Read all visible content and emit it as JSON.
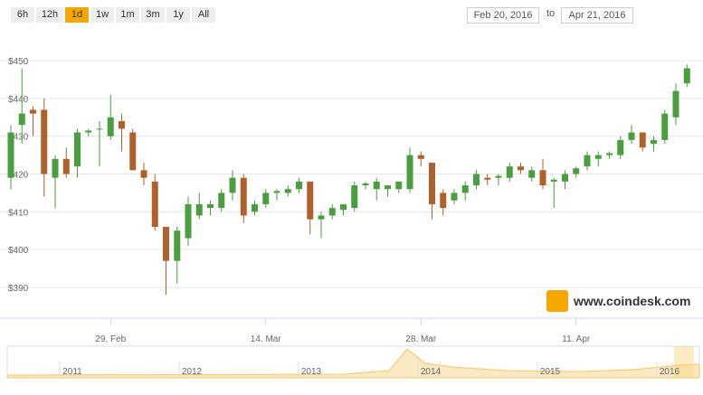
{
  "controls": {
    "ranges": [
      "6h",
      "12h",
      "1d",
      "1w",
      "1m",
      "3m",
      "1y",
      "All"
    ],
    "selected_index": 2
  },
  "date_range": {
    "from": "Feb 20, 2016",
    "separator": "to",
    "to": "Apr 21, 2016"
  },
  "chart_data": {
    "type": "candlestick",
    "categories": [
      null,
      null,
      null,
      null,
      null,
      null,
      null,
      null,
      null,
      "29. Feb",
      null,
      null,
      null,
      null,
      null,
      null,
      null,
      null,
      null,
      null,
      null,
      null,
      null,
      "14. Mar",
      null,
      null,
      null,
      null,
      null,
      null,
      null,
      null,
      null,
      null,
      null,
      null,
      null,
      "28. Mar",
      null,
      null,
      null,
      null,
      null,
      null,
      null,
      null,
      null,
      null,
      null,
      null,
      null,
      "11. Apr",
      null,
      null,
      null,
      null,
      null,
      null,
      null,
      null,
      null,
      null
    ],
    "open": [
      419,
      433,
      437,
      437,
      419,
      424,
      422,
      431,
      432,
      430,
      434,
      431,
      421,
      418,
      406,
      397,
      403,
      409,
      411,
      411,
      415,
      419,
      410,
      412,
      415,
      415,
      416,
      418,
      408,
      409,
      410.5,
      411,
      417,
      416,
      416,
      416,
      416,
      425,
      423,
      415,
      413,
      415,
      417,
      419,
      419,
      419,
      422,
      419,
      421,
      418,
      418,
      420,
      422,
      424,
      425,
      425,
      429,
      431,
      428,
      429,
      435,
      444
    ],
    "high": [
      433,
      448,
      438,
      440,
      425,
      427,
      432,
      432,
      434,
      441,
      436,
      432,
      423,
      420,
      406,
      406,
      414,
      415,
      413,
      416,
      421,
      420,
      413,
      416,
      416,
      417,
      419,
      418,
      410,
      412,
      412,
      418,
      418,
      419,
      417,
      418,
      427,
      426,
      423,
      416,
      416,
      418,
      421,
      420,
      420,
      423,
      423,
      422,
      424,
      419,
      421,
      422,
      426,
      426,
      426,
      430,
      433,
      431,
      430,
      437,
      444,
      449
    ],
    "low": [
      416,
      428,
      430,
      414,
      411,
      419,
      419,
      430,
      422,
      429,
      426,
      421,
      417,
      405,
      388,
      391,
      401,
      408,
      409,
      410,
      413,
      407,
      409,
      411,
      413,
      414,
      415,
      404,
      403,
      408,
      409,
      410,
      416,
      413,
      414,
      415,
      415,
      422,
      408,
      409,
      412,
      413,
      416,
      417,
      417,
      418,
      420,
      418,
      416,
      411,
      416,
      419,
      421,
      422,
      424,
      424,
      428,
      426,
      426,
      428,
      433,
      443
    ],
    "close": [
      431,
      436,
      436,
      420,
      424,
      420,
      431,
      431.5,
      432,
      435,
      432,
      421,
      419,
      406,
      397,
      405,
      412,
      412,
      412,
      415,
      419,
      409,
      412,
      415,
      415.5,
      416,
      418,
      408,
      409,
      411,
      412,
      417,
      417.5,
      418,
      417,
      418,
      425,
      424,
      412,
      411,
      415,
      417,
      420,
      418.5,
      419.5,
      422,
      421,
      421,
      417,
      418.5,
      420,
      421.5,
      425,
      425,
      425.5,
      429,
      431,
      427,
      429,
      436,
      442,
      448
    ],
    "up_color": "#4a9e3f",
    "down_color": "#b0602a",
    "ylim": [
      383.5,
      457.7
    ],
    "yticks": [
      {
        "value": 390,
        "label": "$390"
      },
      {
        "value": 400,
        "label": "$400"
      },
      {
        "value": 410,
        "label": "$410"
      },
      {
        "value": 420,
        "label": "$420"
      },
      {
        "value": 430,
        "label": "$430"
      },
      {
        "value": 440,
        "label": "$440"
      },
      {
        "value": 450,
        "label": "$450"
      }
    ],
    "grid": true
  },
  "navigator": {
    "labels": [
      "2011",
      "2012",
      "2013",
      "2014",
      "2015",
      "2016"
    ]
  },
  "watermark": "www.coindesk.com"
}
